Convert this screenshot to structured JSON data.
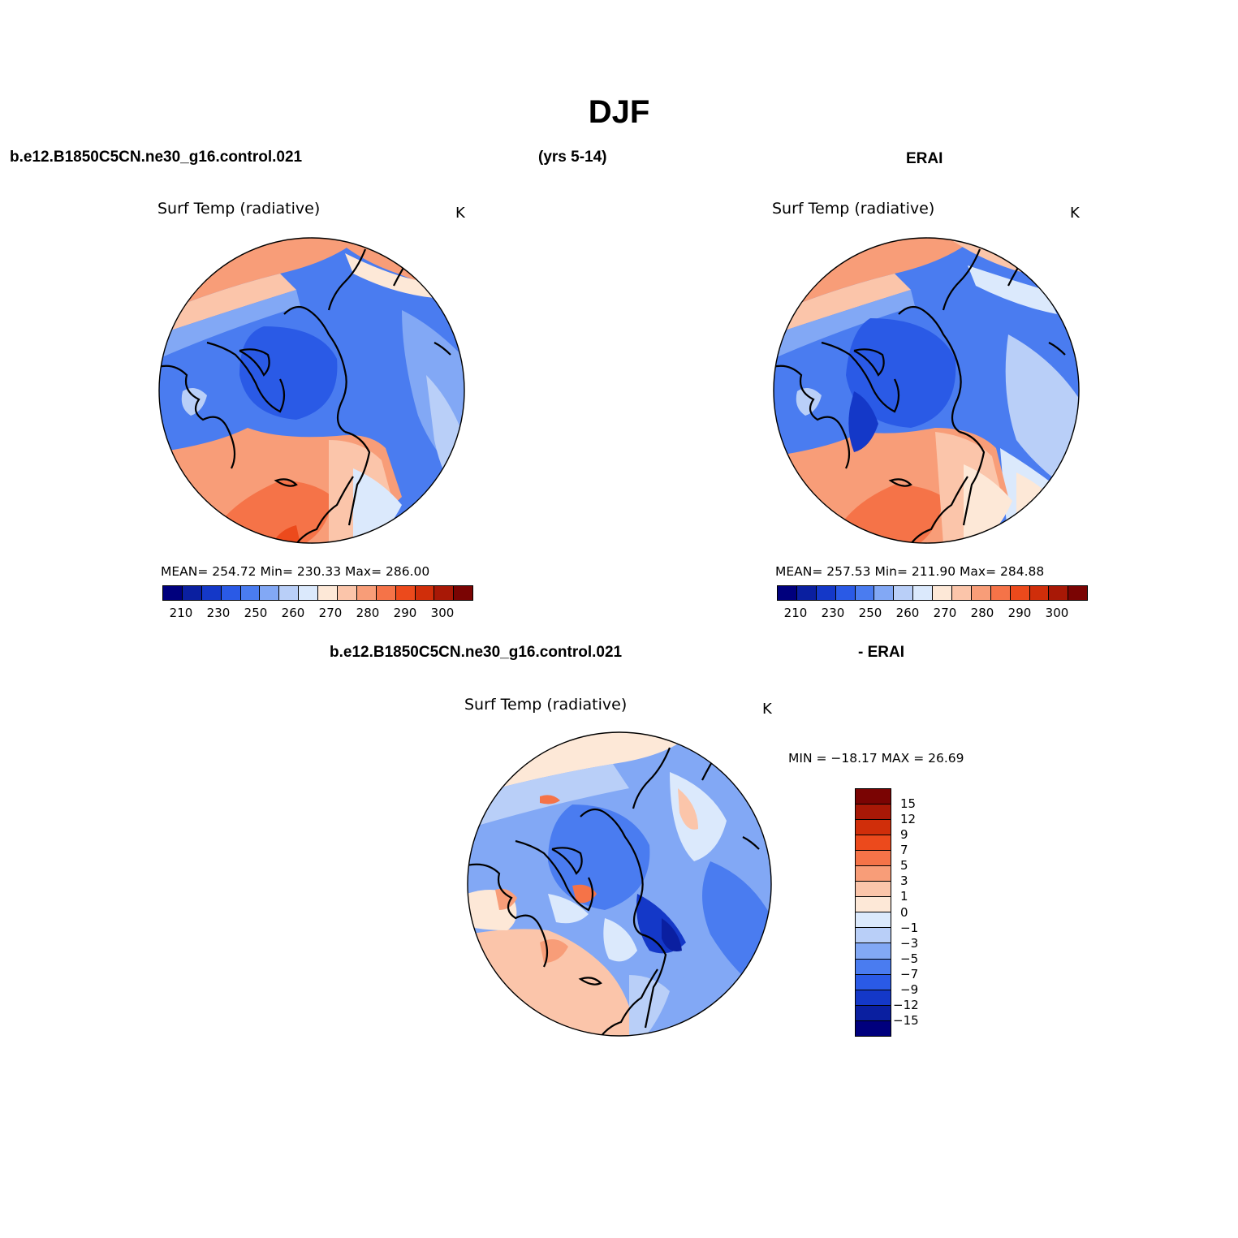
{
  "figure": {
    "title": "DJF",
    "case_name": "b.e12.B1850C5CN.ne30_g16.control.021",
    "years": "(yrs 5-14)",
    "reference": "ERAI",
    "diff_case_name": "b.e12.B1850C5CN.ne30_g16.control.021",
    "diff_reference": "- ERAI"
  },
  "panels": {
    "model": {
      "variable": "Surf Temp (radiative)",
      "unit": "K",
      "stats": "MEAN= 254.72   Min= 230.33   Max= 286.00"
    },
    "obs": {
      "variable": "Surf Temp (radiative)",
      "unit": "K",
      "stats": "MEAN= 257.53   Min= 211.90   Max= 284.88"
    },
    "diff": {
      "variable": "Surf Temp (radiative)",
      "unit": "K",
      "stats": "MIN = −18.17 MAX =   26.69"
    }
  },
  "colorbars": {
    "abs": {
      "labels": [
        "210",
        "230",
        "250",
        "260",
        "270",
        "280",
        "290",
        "300"
      ],
      "colors": [
        "#00007d",
        "#0a1fa0",
        "#1438c8",
        "#2a5ae6",
        "#4a7cf0",
        "#82a8f5",
        "#b9cff8",
        "#dbe9fc",
        "#fde8d7",
        "#fbc5aa",
        "#f89d78",
        "#f57348",
        "#ec4a1c",
        "#d02e0a",
        "#a81806",
        "#7a0403"
      ]
    },
    "diff": {
      "labels": [
        "15",
        "12",
        "9",
        "7",
        "5",
        "3",
        "1",
        "0",
        "−1",
        "−3",
        "−5",
        "−7",
        "−9",
        "−12",
        "−15"
      ],
      "colors": [
        "#7a0403",
        "#a81806",
        "#d02e0a",
        "#ec4a1c",
        "#f57348",
        "#f89d78",
        "#fbc5aa",
        "#fde8d7",
        "#dbe9fc",
        "#b9cff8",
        "#82a8f5",
        "#4a7cf0",
        "#2a5ae6",
        "#1438c8",
        "#0a1fa0",
        "#00007d"
      ]
    }
  }
}
